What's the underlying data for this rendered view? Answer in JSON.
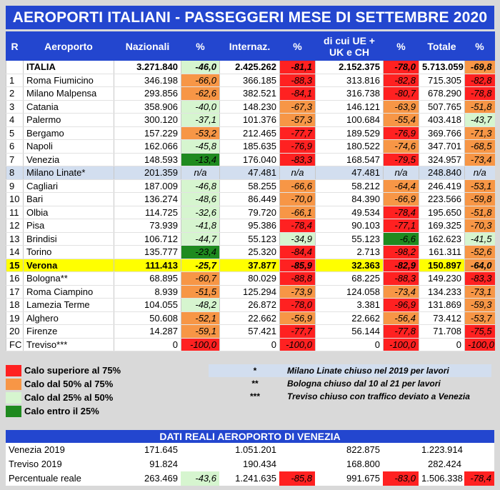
{
  "title": "AEROPORTI ITALIANI - PASSEGGERI MESE DI SETTEMBRE 2020",
  "headers": {
    "rank": "R",
    "airport": "Aeroporto",
    "national": "Nazionali",
    "pct1": "%",
    "international": "Internaz.",
    "pct2": "%",
    "eu_line1": "di cui UE +",
    "eu_line2": "UK e CH",
    "pct3": "%",
    "total": "Totale",
    "pct4": "%"
  },
  "rows": [
    {
      "r": "",
      "name": "ITALIA",
      "naz": "3.271.840",
      "p1": "-46,0",
      "c1": "lgreen",
      "int": "2.425.262",
      "p2": "-81,1",
      "c2": "red",
      "ue": "2.152.375",
      "p3": "-78,0",
      "c3": "red",
      "tot": "5.713.059",
      "p4": "-69,8",
      "c4": "orange",
      "style": "italia"
    },
    {
      "r": "1",
      "name": "Roma Fiumicino",
      "naz": "346.198",
      "p1": "-66,0",
      "c1": "orange",
      "int": "366.185",
      "p2": "-88,3",
      "c2": "red",
      "ue": "313.816",
      "p3": "-82,8",
      "c3": "red",
      "tot": "715.305",
      "p4": "-82,8",
      "c4": "red"
    },
    {
      "r": "2",
      "name": "Milano Malpensa",
      "naz": "293.856",
      "p1": "-62,6",
      "c1": "orange",
      "int": "382.521",
      "p2": "-84,1",
      "c2": "red",
      "ue": "316.738",
      "p3": "-80,7",
      "c3": "red",
      "tot": "678.290",
      "p4": "-78,8",
      "c4": "red"
    },
    {
      "r": "3",
      "name": "Catania",
      "naz": "358.906",
      "p1": "-40,0",
      "c1": "lgreen",
      "int": "148.230",
      "p2": "-67,3",
      "c2": "orange",
      "ue": "146.121",
      "p3": "-63,9",
      "c3": "orange",
      "tot": "507.765",
      "p4": "-51,8",
      "c4": "orange"
    },
    {
      "r": "4",
      "name": "Palermo",
      "naz": "300.120",
      "p1": "-37,1",
      "c1": "lgreen",
      "int": "101.376",
      "p2": "-57,3",
      "c2": "orange",
      "ue": "100.684",
      "p3": "-55,4",
      "c3": "orange",
      "tot": "403.418",
      "p4": "-43,7",
      "c4": "lgreen"
    },
    {
      "r": "5",
      "name": "Bergamo",
      "naz": "157.229",
      "p1": "-53,2",
      "c1": "orange",
      "int": "212.465",
      "p2": "-77,7",
      "c2": "red",
      "ue": "189.529",
      "p3": "-76,9",
      "c3": "red",
      "tot": "369.766",
      "p4": "-71,3",
      "c4": "orange"
    },
    {
      "r": "6",
      "name": "Napoli",
      "naz": "162.066",
      "p1": "-45,8",
      "c1": "lgreen",
      "int": "185.635",
      "p2": "-76,9",
      "c2": "red",
      "ue": "180.522",
      "p3": "-74,6",
      "c3": "orange",
      "tot": "347.701",
      "p4": "-68,5",
      "c4": "orange"
    },
    {
      "r": "7",
      "name": "Venezia",
      "naz": "148.593",
      "p1": "-13,4",
      "c1": "dgreen",
      "int": "176.040",
      "p2": "-83,3",
      "c2": "red",
      "ue": "168.547",
      "p3": "-79,5",
      "c3": "red",
      "tot": "324.957",
      "p4": "-73,4",
      "c4": "orange"
    },
    {
      "r": "8",
      "name": "Milano Linate*",
      "naz": "201.359",
      "p1": "n/a",
      "c1": "na",
      "int": "47.481",
      "p2": "n/a",
      "c2": "na",
      "ue": "47.481",
      "p3": "n/a",
      "c3": "na",
      "tot": "248.840",
      "p4": "n/a",
      "c4": "na",
      "style": "linate"
    },
    {
      "r": "9",
      "name": "Cagliari",
      "naz": "187.009",
      "p1": "-46,8",
      "c1": "lgreen",
      "int": "58.255",
      "p2": "-66,6",
      "c2": "orange",
      "ue": "58.212",
      "p3": "-64,4",
      "c3": "orange",
      "tot": "246.419",
      "p4": "-53,1",
      "c4": "orange"
    },
    {
      "r": "10",
      "name": "Bari",
      "naz": "136.274",
      "p1": "-48,6",
      "c1": "lgreen",
      "int": "86.449",
      "p2": "-70,0",
      "c2": "orange",
      "ue": "84.390",
      "p3": "-66,9",
      "c3": "orange",
      "tot": "223.566",
      "p4": "-59,8",
      "c4": "orange"
    },
    {
      "r": "11",
      "name": "Olbia",
      "naz": "114.725",
      "p1": "-32,6",
      "c1": "lgreen",
      "int": "79.720",
      "p2": "-66,1",
      "c2": "orange",
      "ue": "49.534",
      "p3": "-78,4",
      "c3": "red",
      "tot": "195.650",
      "p4": "-51,8",
      "c4": "orange"
    },
    {
      "r": "12",
      "name": "Pisa",
      "naz": "73.939",
      "p1": "-41,8",
      "c1": "lgreen",
      "int": "95.386",
      "p2": "-78,4",
      "c2": "red",
      "ue": "90.103",
      "p3": "-77,1",
      "c3": "red",
      "tot": "169.325",
      "p4": "-70,3",
      "c4": "orange"
    },
    {
      "r": "13",
      "name": "Brindisi",
      "naz": "106.712",
      "p1": "-44,7",
      "c1": "lgreen",
      "int": "55.123",
      "p2": "-34,9",
      "c2": "lgreen",
      "ue": "55.123",
      "p3": "-6,6",
      "c3": "dgreen",
      "tot": "162.623",
      "p4": "-41,5",
      "c4": "lgreen"
    },
    {
      "r": "14",
      "name": "Torino",
      "naz": "135.777",
      "p1": "-23,4",
      "c1": "dgreen",
      "int": "25.320",
      "p2": "-84,4",
      "c2": "red",
      "ue": "2.713",
      "p3": "-98,2",
      "c3": "red",
      "tot": "161.311",
      "p4": "-52,6",
      "c4": "orange"
    },
    {
      "r": "15",
      "name": "Verona",
      "naz": "111.413",
      "p1": "-25,7",
      "c1": "",
      "int": "37.877",
      "p2": "-85,9",
      "c2": "red",
      "ue": "32.363",
      "p3": "-82,9",
      "c3": "red",
      "tot": "150.897",
      "p4": "-64,0",
      "c4": "orange",
      "style": "verona"
    },
    {
      "r": "16",
      "name": "Bologna**",
      "naz": "68.895",
      "p1": "-60,7",
      "c1": "orange",
      "int": "80.029",
      "p2": "-88,8",
      "c2": "red",
      "ue": "68.225",
      "p3": "-88,3",
      "c3": "red",
      "tot": "149.230",
      "p4": "-83,3",
      "c4": "red"
    },
    {
      "r": "17",
      "name": "Roma Ciampino",
      "naz": "8.939",
      "p1": "-51,5",
      "c1": "orange",
      "int": "125.294",
      "p2": "-73,9",
      "c2": "orange",
      "ue": "124.058",
      "p3": "-73,4",
      "c3": "orange",
      "tot": "134.233",
      "p4": "-73,1",
      "c4": "orange"
    },
    {
      "r": "18",
      "name": "Lamezia Terme",
      "naz": "104.055",
      "p1": "-48,2",
      "c1": "lgreen",
      "int": "26.872",
      "p2": "-78,0",
      "c2": "red",
      "ue": "3.381",
      "p3": "-96,9",
      "c3": "red",
      "tot": "131.869",
      "p4": "-59,3",
      "c4": "orange"
    },
    {
      "r": "19",
      "name": "Alghero",
      "naz": "50.608",
      "p1": "-52,1",
      "c1": "orange",
      "int": "22.662",
      "p2": "-56,9",
      "c2": "orange",
      "ue": "22.662",
      "p3": "-56,4",
      "c3": "orange",
      "tot": "73.412",
      "p4": "-53,7",
      "c4": "orange"
    },
    {
      "r": "20",
      "name": "Firenze",
      "naz": "14.287",
      "p1": "-59,1",
      "c1": "orange",
      "int": "57.421",
      "p2": "-77,7",
      "c2": "red",
      "ue": "56.144",
      "p3": "-77,8",
      "c3": "red",
      "tot": "71.708",
      "p4": "-75,5",
      "c4": "red"
    },
    {
      "r": "FC",
      "name": "Treviso***",
      "naz": "0",
      "p1": "-100,0",
      "c1": "red",
      "int": "0",
      "p2": "-100,0",
      "c2": "red",
      "ue": "0",
      "p3": "-100,0",
      "c3": "red",
      "tot": "0",
      "p4": "-100,0",
      "c4": "red"
    }
  ],
  "colors": {
    "red": "#ff2121",
    "orange": "#f79646",
    "lgreen": "#d6f5cf",
    "dgreen": "#1f8a1f",
    "header": "#2346cf",
    "verona": "#ffff00",
    "linate": "#d2deef"
  },
  "legend": [
    {
      "label": "Calo superiore al 75%",
      "color": "red"
    },
    {
      "label": "Calo dal 50% al 75%",
      "color": "orange"
    },
    {
      "label": "Calo dal 25% al 50%",
      "color": "lgreen"
    },
    {
      "label": "Calo entro il 25%",
      "color": "dgreen"
    }
  ],
  "notes": [
    {
      "mark": "*",
      "text": "Milano Linate chiuso nel 2019 per lavori"
    },
    {
      "mark": "**",
      "text": "Bologna chiuso dal 10 al 21 per lavori"
    },
    {
      "mark": "***",
      "text": "Treviso chiuso con traffico deviato a Venezia"
    }
  ],
  "venezia": {
    "title": "DATI REALI AEROPORTO DI VENEZIA",
    "rows": [
      {
        "name": "Venezia 2019",
        "naz": "171.645",
        "p1": "",
        "int": "1.051.201",
        "p2": "",
        "ue": "822.875",
        "p3": "",
        "tot": "1.223.914",
        "p4": ""
      },
      {
        "name": "Treviso 2019",
        "naz": "91.824",
        "p1": "",
        "int": "190.434",
        "p2": "",
        "ue": "168.800",
        "p3": "",
        "tot": "282.424",
        "p4": ""
      },
      {
        "name": "Percentuale reale",
        "naz": "263.469",
        "p1": "-43,6",
        "c1": "lgreen",
        "int": "1.241.635",
        "p2": "-85,8",
        "c2": "red",
        "ue": "991.675",
        "p3": "-83,0",
        "c3": "red",
        "tot": "1.506.338",
        "p4": "-78,4",
        "c4": "red"
      }
    ]
  }
}
